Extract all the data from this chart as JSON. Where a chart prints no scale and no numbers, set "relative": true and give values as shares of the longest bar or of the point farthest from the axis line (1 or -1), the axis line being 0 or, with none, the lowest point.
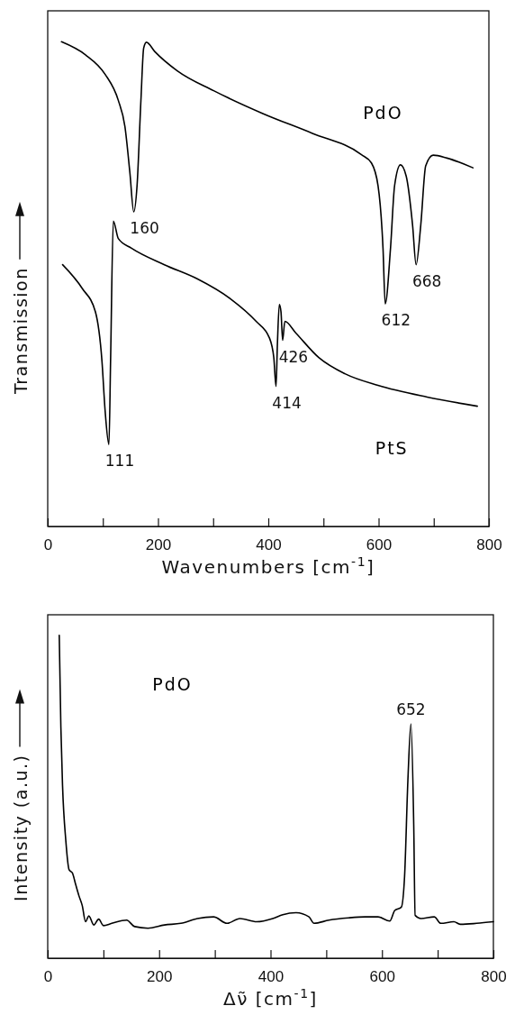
{
  "chart_data": [
    {
      "type": "line",
      "relative": true,
      "xlabel": "Wavenumbers [cm$^{-1}$]",
      "ylabel": "Transmission",
      "xlim": [
        0,
        800
      ],
      "xticks": [
        0,
        {
          "value": 100,
          "label": null
        },
        200,
        {
          "value": 300,
          "label": null
        },
        400,
        {
          "value": 500,
          "label": null
        },
        600,
        {
          "value": 700,
          "label": null
        },
        800
      ],
      "tick_labels": "x",
      "grid": false,
      "legend": false,
      "marker": "none",
      "line_style": "solid",
      "series": [
        {
          "name": "PdO",
          "color": "#000000",
          "x": [
            25,
            68.5,
            104,
            128,
            140,
            149,
            156,
            162,
            169,
            174,
            179,
            194,
            235,
            301,
            390,
            480,
            569,
            587,
            599,
            608,
            612,
            621.6,
            629,
            639.6,
            650,
            661.6,
            668,
            676.5,
            685.4,
            699,
            724,
            771
          ],
          "values": [
            1.0,
            0.973,
            0.933,
            0.879,
            0.825,
            0.73,
            0.649,
            0.703,
            0.879,
            0.987,
            0.999,
            0.98,
            0.94,
            0.899,
            0.852,
            0.811,
            0.767,
            0.75,
            0.703,
            0.574,
            0.459,
            0.574,
            0.703,
            0.746,
            0.723,
            0.622,
            0.54,
            0.622,
            0.744,
            0.766,
            0.76,
            0.74
          ]
        },
        {
          "name": "PtS",
          "color": "#000000",
          "x": [
            27,
            62.6,
            86.4,
            98.3,
            104,
            111,
            114,
            119,
            128,
            152,
            211.6,
            271,
            331,
            378,
            402,
            410,
            414,
            416.5,
            420,
            423,
            426,
            430,
            450,
            492,
            539,
            599,
            688,
            779
          ],
          "values": [
            0.54,
            0.491,
            0.443,
            0.342,
            0.24,
            0.169,
            0.342,
            0.63,
            0.594,
            0.574,
            0.54,
            0.511,
            0.47,
            0.423,
            0.389,
            0.348,
            0.289,
            0.376,
            0.458,
            0.443,
            0.384,
            0.423,
            0.399,
            0.348,
            0.315,
            0.291,
            0.267,
            0.248
          ]
        }
      ],
      "annotations": [
        {
          "text": "160",
          "x": 156,
          "y": 0.649
        },
        {
          "text": "612",
          "x": 612,
          "y": 0.459
        },
        {
          "text": "668",
          "x": 668,
          "y": 0.54
        },
        {
          "text": "111",
          "x": 111,
          "y": 0.169
        },
        {
          "text": "414",
          "x": 414,
          "y": 0.289
        },
        {
          "text": "426",
          "x": 426,
          "y": 0.384
        }
      ]
    },
    {
      "type": "line",
      "relative": true,
      "xlabel": "Δν̃ [cm$^{-1}$]",
      "ylabel": "Intensity (a.u.)",
      "xlim": [
        0,
        800
      ],
      "xticks": [
        0,
        {
          "value": 100,
          "label": null
        },
        200,
        {
          "value": 300,
          "label": null
        },
        400,
        {
          "value": 500,
          "label": null
        },
        600,
        {
          "value": 700,
          "label": null
        },
        800
      ],
      "tick_labels": "x",
      "grid": false,
      "legend": false,
      "marker": "none",
      "line_style": "solid",
      "series": [
        {
          "name": "PdO",
          "color": "#000000",
          "x": [
            20.7,
            23.6,
            26.6,
            32.5,
            38.4,
            44.3,
            50.2,
            56.1,
            62,
            67.9,
            73.8,
            82.7,
            91.5,
            100,
            115,
            141.7,
            156,
            180,
            209.6,
            239,
            268.6,
            298,
            321.8,
            345,
            375,
            404,
            422,
            445.8,
            469,
            478,
            504.8,
            540,
            569.7,
            593,
            614,
            623,
            634.7,
            640.6,
            646.5,
            652,
            657,
            659.5,
            670,
            694,
            705.5,
            729,
            741,
            770,
            800
          ],
          "values": [
            1.0,
            0.716,
            0.535,
            0.364,
            0.274,
            0.264,
            0.228,
            0.193,
            0.163,
            0.113,
            0.131,
            0.103,
            0.121,
            0.101,
            0.108,
            0.118,
            0.098,
            0.093,
            0.103,
            0.108,
            0.123,
            0.128,
            0.108,
            0.123,
            0.113,
            0.123,
            0.135,
            0.141,
            0.128,
            0.108,
            0.118,
            0.125,
            0.128,
            0.128,
            0.115,
            0.148,
            0.158,
            0.254,
            0.55,
            0.726,
            0.414,
            0.133,
            0.123,
            0.128,
            0.108,
            0.113,
            0.105,
            0.108,
            0.113
          ]
        }
      ],
      "annotations": [
        {
          "text": "652",
          "x": 652,
          "y": 0.726
        }
      ]
    }
  ]
}
